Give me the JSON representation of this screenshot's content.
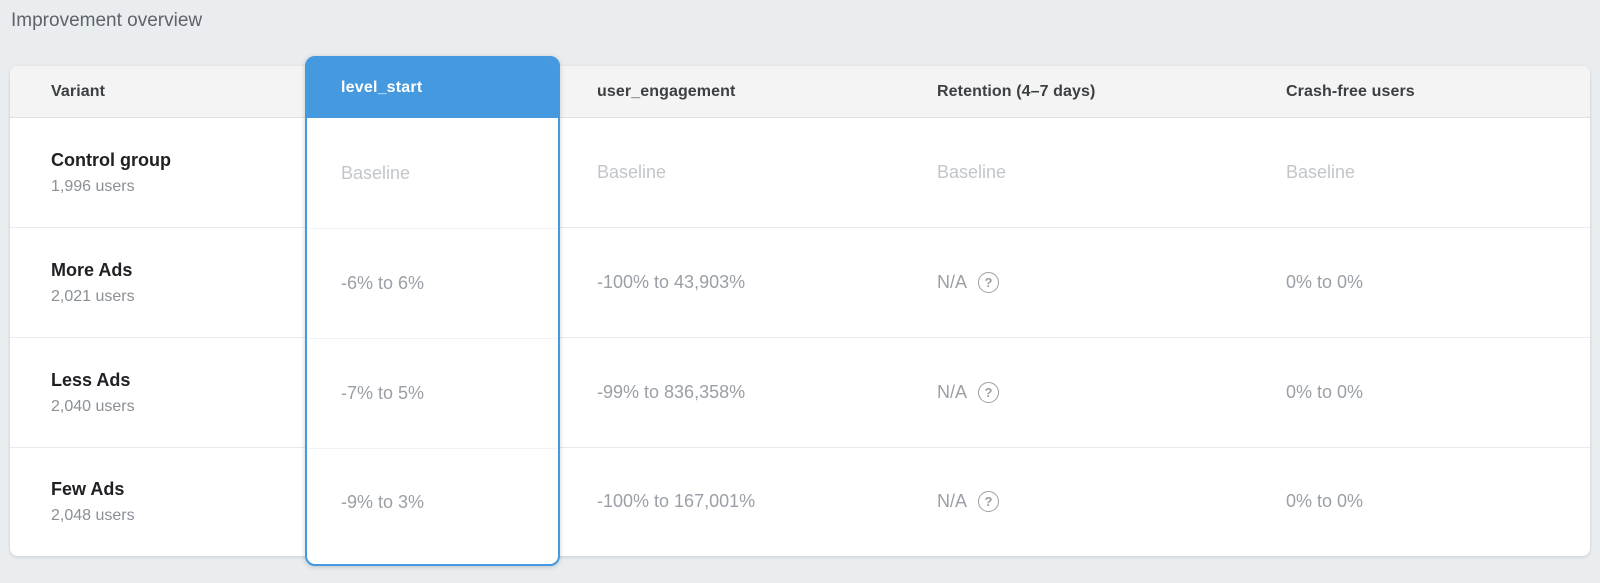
{
  "page": {
    "title": "Improvement overview"
  },
  "colors": {
    "accent_blue": "#4499df",
    "page_background": "#e9edef",
    "header_background": "#f4f4f4",
    "value_gray": "#9aa0a6",
    "baseline_gray": "#c2c6ca"
  },
  "table": {
    "columns": [
      {
        "label": "Variant",
        "selected": false
      },
      {
        "label": "level_start",
        "selected": true
      },
      {
        "label": "user_engagement",
        "selected": false
      },
      {
        "label": "Retention (4–7 days)",
        "selected": false
      },
      {
        "label": "Crash-free users",
        "selected": false
      }
    ],
    "rows": [
      {
        "variant": "Control group",
        "users": "1,996 users",
        "level_start": "Baseline",
        "user_engagement": "Baseline",
        "retention": "Baseline",
        "crash_free": "Baseline"
      },
      {
        "variant": "More Ads",
        "users": "2,021 users",
        "level_start": "-6% to 6%",
        "user_engagement": "-100% to 43,903%",
        "retention": "N/A",
        "crash_free": "0% to 0%"
      },
      {
        "variant": "Less Ads",
        "users": "2,040 users",
        "level_start": "-7% to 5%",
        "user_engagement": "-99% to 836,358%",
        "retention": "N/A",
        "crash_free": "0% to 0%"
      },
      {
        "variant": "Few Ads",
        "users": "2,048 users",
        "level_start": "-9% to 3%",
        "user_engagement": "-100% to 167,001%",
        "retention": "N/A",
        "crash_free": "0% to 0%"
      }
    ]
  }
}
